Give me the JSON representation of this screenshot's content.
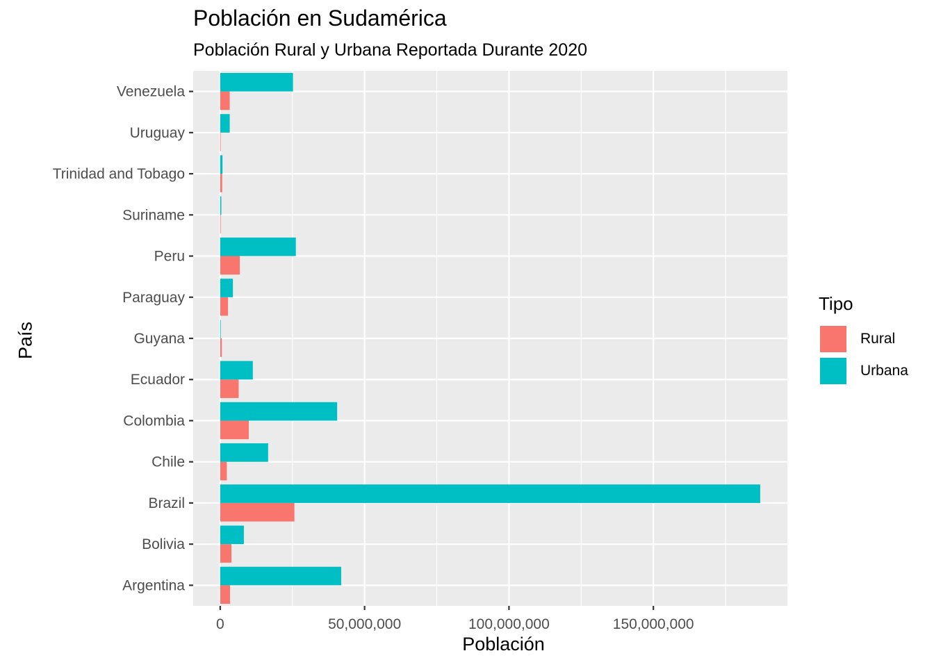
{
  "chart_data": {
    "type": "bar",
    "orientation": "horizontal",
    "title": "Población en Sudamérica",
    "subtitle": "Población Rural y Urbana Reportada Durante 2020",
    "xlabel": "Población",
    "ylabel": "País",
    "categories": [
      "Argentina",
      "Bolivia",
      "Brazil",
      "Chile",
      "Colombia",
      "Ecuador",
      "Guyana",
      "Paraguay",
      "Peru",
      "Suriname",
      "Trinidad and Tobago",
      "Uruguay",
      "Venezuela"
    ],
    "series": [
      {
        "name": "Rural",
        "color": "#F8766D",
        "values": [
          3400000,
          3900000,
          25700000,
          2300000,
          9900000,
          6400000,
          570000,
          2700000,
          6800000,
          200000,
          700000,
          160000,
          3300000
        ]
      },
      {
        "name": "Urbana",
        "color": "#00BFC4",
        "values": [
          41900000,
          8200000,
          187000000,
          16600000,
          40500000,
          11300000,
          210000,
          4400000,
          26200000,
          390000,
          800000,
          3300000,
          25200000
        ]
      }
    ],
    "xlim": [
      -9350000,
      196400000
    ],
    "xticks": [
      0,
      50000000,
      100000000,
      150000000
    ],
    "xtick_labels": [
      "0",
      "50,000,000",
      "100,000,000",
      "150,000,000"
    ],
    "grid": true,
    "legend": {
      "title": "Tipo",
      "position": "right"
    }
  }
}
